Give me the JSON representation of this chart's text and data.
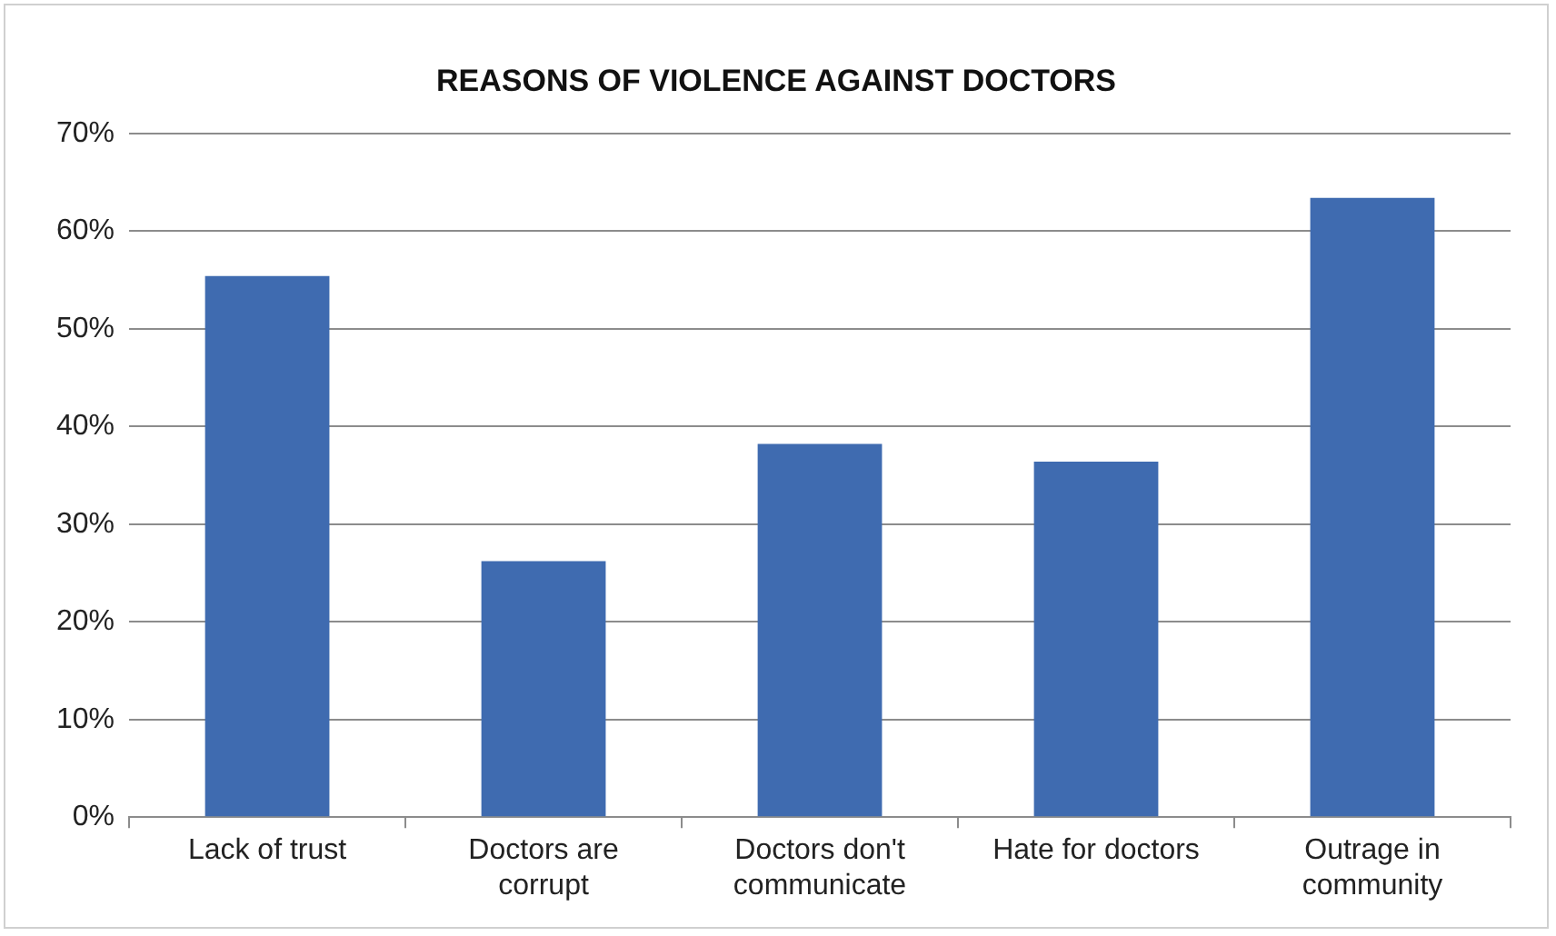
{
  "chart_data": {
    "type": "bar",
    "title": "REASONS OF VIOLENCE AGAINST DOCTORS",
    "categories": [
      "Lack of trust",
      "Doctors are corrupt",
      "Doctors don't communicate",
      "Hate for doctors",
      "Outrage in community"
    ],
    "values": [
      55.4,
      26.2,
      38.2,
      36.4,
      63.4
    ],
    "color": "#3f6bb0",
    "ylim": [
      0,
      70
    ],
    "yticks": [
      {
        "value": 0,
        "label": "0%"
      },
      {
        "value": 10,
        "label": "10%"
      },
      {
        "value": 20,
        "label": "20%"
      },
      {
        "value": 30,
        "label": "30%"
      },
      {
        "value": 40,
        "label": "40%"
      },
      {
        "value": 50,
        "label": "50%"
      },
      {
        "value": 60,
        "label": "60%"
      },
      {
        "value": 70,
        "label": "70%"
      }
    ],
    "grid": "y",
    "legend": false
  }
}
